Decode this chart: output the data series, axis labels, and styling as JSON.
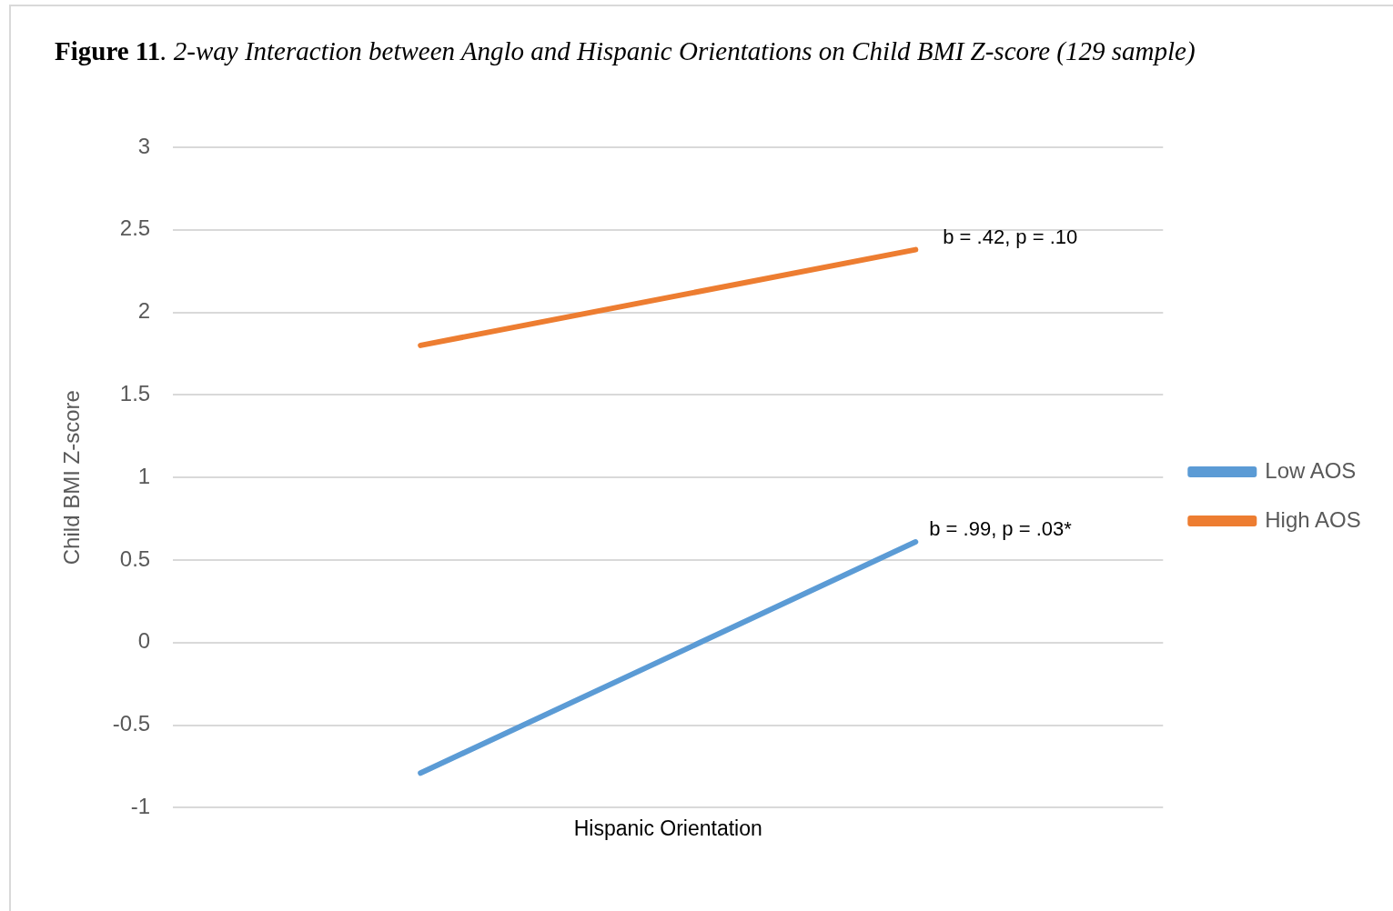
{
  "chart_data": {
    "type": "line",
    "title": "Figure 11. 2-way Interaction between Anglo and Hispanic Orientations on Child BMI Z-score (129 sample)",
    "xlabel": "Hispanic Orientation",
    "ylabel": "Child BMI Z-score",
    "categories": [
      null,
      null
    ],
    "series": [
      {
        "name": "Low AOS",
        "color": "#5b9bd5",
        "values": [
          -0.79,
          0.61
        ]
      },
      {
        "name": "High AOS",
        "color": "#ed7d31",
        "values": [
          1.8,
          2.38
        ]
      }
    ],
    "ylim": [
      -1,
      3
    ],
    "yticks": [
      -1,
      -0.5,
      0,
      0.5,
      1,
      1.5,
      2,
      2.5,
      3
    ],
    "annotations": [
      "b = .99, p = .03*",
      "b = .42, p = .10"
    ],
    "grid": "y",
    "legend": "right",
    "marker": "none",
    "line_style": "solid",
    "tick_labels": "y"
  }
}
